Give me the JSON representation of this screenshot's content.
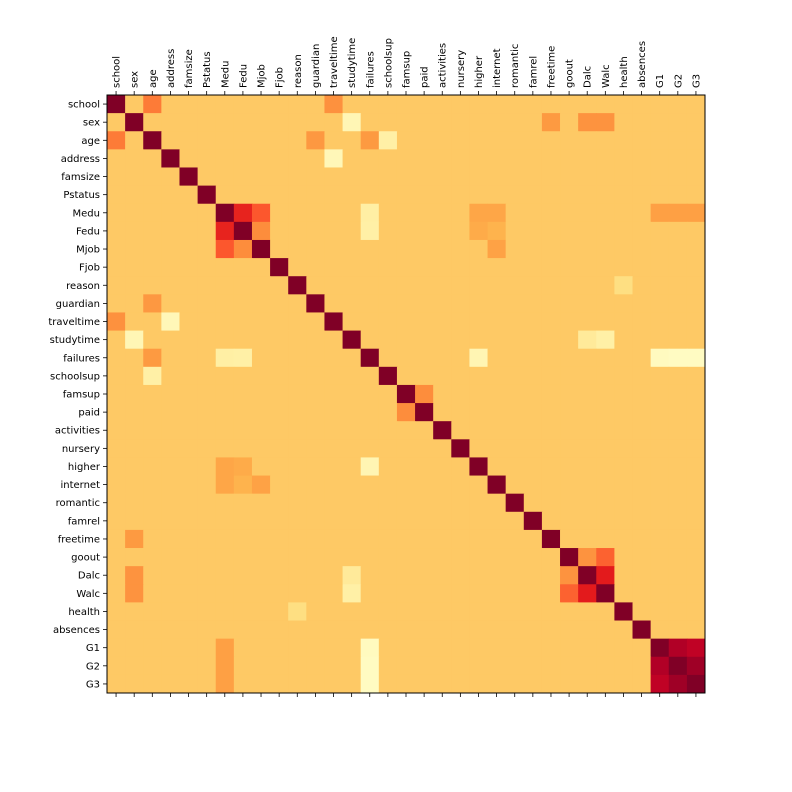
{
  "chart_data": {
    "type": "heatmap",
    "title": "",
    "xlabel": "",
    "ylabel": "",
    "labels": [
      "school",
      "sex",
      "age",
      "address",
      "famsize",
      "Pstatus",
      "Medu",
      "Fedu",
      "Mjob",
      "Fjob",
      "reason",
      "guardian",
      "traveltime",
      "studytime",
      "failures",
      "schoolsup",
      "famsup",
      "paid",
      "activities",
      "nursery",
      "higher",
      "internet",
      "romantic",
      "famrel",
      "freetime",
      "goout",
      "Dalc",
      "Walc",
      "health",
      "absences",
      "G1",
      "G2",
      "G3"
    ],
    "x_tick_position": "top",
    "colormap": "YlOrRd",
    "vmin": -0.4,
    "vmax": 1.0,
    "colorbar": false,
    "grid": false,
    "overrides": [
      [
        "school",
        "age",
        0.35
      ],
      [
        "school",
        "traveltime",
        0.28
      ],
      [
        "age",
        "guardian",
        0.25
      ],
      [
        "age",
        "failures",
        0.24
      ],
      [
        "Medu",
        "Fedu",
        0.62
      ],
      [
        "Medu",
        "Mjob",
        0.45
      ],
      [
        "Fedu",
        "Mjob",
        0.3
      ],
      [
        "Medu",
        "internet",
        0.18
      ],
      [
        "Fedu",
        "internet",
        0.12
      ],
      [
        "Mjob",
        "internet",
        0.2
      ],
      [
        "Medu",
        "higher",
        0.18
      ],
      [
        "Fedu",
        "higher",
        0.16
      ],
      [
        "goout",
        "Dalc",
        0.27
      ],
      [
        "goout",
        "Walc",
        0.42
      ],
      [
        "Dalc",
        "Walc",
        0.65
      ],
      [
        "sex",
        "Dalc",
        0.27
      ],
      [
        "sex",
        "Walc",
        0.27
      ],
      [
        "sex",
        "freetime",
        0.24
      ],
      [
        "G1",
        "G2",
        0.86
      ],
      [
        "G1",
        "G3",
        0.81
      ],
      [
        "G2",
        "G3",
        0.91
      ],
      [
        "famsup",
        "paid",
        0.3
      ],
      [
        "Medu",
        "G1",
        0.21
      ],
      [
        "Medu",
        "G2",
        0.21
      ],
      [
        "Medu",
        "G3",
        0.21
      ],
      [
        "failures",
        "G1",
        -0.35
      ],
      [
        "failures",
        "G2",
        -0.36
      ],
      [
        "failures",
        "G3",
        -0.36
      ],
      [
        "failures",
        "higher",
        -0.3
      ],
      [
        "failures",
        "Medu",
        -0.24
      ],
      [
        "failures",
        "Fedu",
        -0.25
      ],
      [
        "studytime",
        "sex",
        -0.31
      ],
      [
        "studytime",
        "Walc",
        -0.25
      ],
      [
        "studytime",
        "Dalc",
        -0.2
      ],
      [
        "traveltime",
        "address",
        -0.32
      ],
      [
        "schoolsup",
        "age",
        -0.25
      ],
      [
        "reason",
        "health",
        -0.1
      ]
    ],
    "default_value": 0.02
  }
}
